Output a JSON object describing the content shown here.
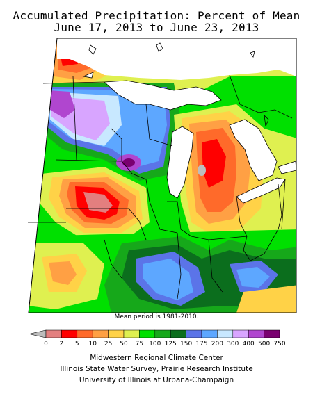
{
  "title": {
    "line1": "Accumulated Precipitation: Percent of Mean",
    "line2": "June 17, 2013 to June 23, 2013"
  },
  "map": {
    "note": "Mean period is 1981-2010."
  },
  "legend": {
    "labels": [
      "0",
      "2",
      "5",
      "10",
      "25",
      "50",
      "75",
      "100",
      "125",
      "150",
      "175",
      "200",
      "300",
      "400",
      "500",
      "750"
    ],
    "colors": [
      "#bdbdbd",
      "#e37f7f",
      "#ff0000",
      "#ff6a2a",
      "#ffa044",
      "#ffd247",
      "#dff050",
      "#00e000",
      "#16a81a",
      "#0b6e1d",
      "#5b74e8",
      "#5da7ff",
      "#c8e8ff",
      "#d8a5ff",
      "#b046cf",
      "#7a0070"
    ]
  },
  "credits": {
    "line1": "Midwestern Regional Climate Center",
    "line2": "Illinois State Water Survey, Prairie Research Institute",
    "line3": "University of Illinois at Urbana-Champaign"
  }
}
